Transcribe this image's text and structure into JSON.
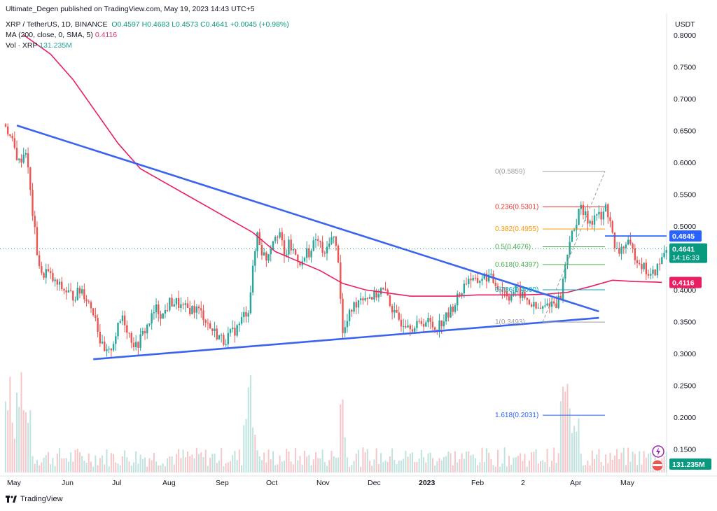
{
  "header": {
    "published": "Ultimate_Degen published on TradingView.com, May 19, 2023 14:43 UTC+5",
    "symbol": "XRP / TetherUS, 1D, BINANCE",
    "ohlc_o": "O0.4597",
    "ohlc_h": "H0.4683",
    "ohlc_l": "L0.4573",
    "ohlc_c": "C0.4641",
    "change": "+0.0045 (+0.98%)",
    "ma_label": "MA (200, close, 0, SMA, 5)",
    "ma_value": "0.4116",
    "vol_label": "Vol · XRP",
    "vol_value": "131.235M"
  },
  "footer": {
    "brand": "TradingView"
  },
  "chart_data": {
    "type": "candlestick",
    "currency": "USDT",
    "y_ticks": [
      "0.8000",
      "0.7500",
      "0.7000",
      "0.6500",
      "0.6000",
      "0.5500",
      "0.5000",
      "0.4500",
      "0.4000",
      "0.3500",
      "0.3000",
      "0.2500",
      "0.2000",
      "0.1500"
    ],
    "ylim": [
      0.13,
      0.82
    ],
    "x_ticks": [
      "May",
      "Jun",
      "Jul",
      "Aug",
      "Sep",
      "Oct",
      "Nov",
      "Dec",
      "2023",
      "Feb",
      "2",
      "Apr",
      "May"
    ],
    "price_path": [
      [
        0,
        0.66
      ],
      [
        3,
        0.63
      ],
      [
        6,
        0.6
      ],
      [
        9,
        0.62
      ],
      [
        12,
        0.52
      ],
      [
        14,
        0.46
      ],
      [
        16,
        0.42
      ],
      [
        18,
        0.43
      ],
      [
        22,
        0.41
      ],
      [
        26,
        0.4
      ],
      [
        30,
        0.39
      ],
      [
        34,
        0.4
      ],
      [
        37,
        0.38
      ],
      [
        40,
        0.36
      ],
      [
        42,
        0.32
      ],
      [
        44,
        0.3
      ],
      [
        46,
        0.3
      ],
      [
        49,
        0.33
      ],
      [
        52,
        0.36
      ],
      [
        55,
        0.33
      ],
      [
        58,
        0.31
      ],
      [
        61,
        0.33
      ],
      [
        64,
        0.35
      ],
      [
        67,
        0.37
      ],
      [
        70,
        0.36
      ],
      [
        73,
        0.38
      ],
      [
        76,
        0.38
      ],
      [
        79,
        0.37
      ],
      [
        82,
        0.37
      ],
      [
        85,
        0.37
      ],
      [
        88,
        0.36
      ],
      [
        91,
        0.34
      ],
      [
        94,
        0.33
      ],
      [
        97,
        0.32
      ],
      [
        100,
        0.33
      ],
      [
        103,
        0.34
      ],
      [
        106,
        0.36
      ],
      [
        108,
        0.37
      ],
      [
        110,
        0.43
      ],
      [
        112,
        0.49
      ],
      [
        114,
        0.46
      ],
      [
        116,
        0.45
      ],
      [
        118,
        0.47
      ],
      [
        120,
        0.49
      ],
      [
        122,
        0.49
      ],
      [
        124,
        0.45
      ],
      [
        126,
        0.47
      ],
      [
        128,
        0.46
      ],
      [
        130,
        0.45
      ],
      [
        132,
        0.44
      ],
      [
        134,
        0.46
      ],
      [
        136,
        0.46
      ],
      [
        138,
        0.48
      ],
      [
        140,
        0.47
      ],
      [
        142,
        0.45
      ],
      [
        144,
        0.48
      ],
      [
        146,
        0.48
      ],
      [
        148,
        0.45
      ],
      [
        150,
        0.33
      ],
      [
        152,
        0.35
      ],
      [
        154,
        0.37
      ],
      [
        156,
        0.38
      ],
      [
        158,
        0.39
      ],
      [
        161,
        0.39
      ],
      [
        164,
        0.39
      ],
      [
        167,
        0.4
      ],
      [
        170,
        0.39
      ],
      [
        173,
        0.36
      ],
      [
        176,
        0.35
      ],
      [
        179,
        0.35
      ],
      [
        182,
        0.34
      ],
      [
        185,
        0.35
      ],
      [
        188,
        0.35
      ],
      [
        191,
        0.34
      ],
      [
        194,
        0.35
      ],
      [
        197,
        0.36
      ],
      [
        200,
        0.38
      ],
      [
        203,
        0.4
      ],
      [
        206,
        0.42
      ],
      [
        209,
        0.41
      ],
      [
        212,
        0.42
      ],
      [
        215,
        0.42
      ],
      [
        218,
        0.41
      ],
      [
        221,
        0.4
      ],
      [
        224,
        0.39
      ],
      [
        227,
        0.4
      ],
      [
        230,
        0.39
      ],
      [
        233,
        0.38
      ],
      [
        236,
        0.37
      ],
      [
        239,
        0.37
      ],
      [
        242,
        0.38
      ],
      [
        245,
        0.38
      ],
      [
        247,
        0.39
      ],
      [
        249,
        0.44
      ],
      [
        251,
        0.48
      ],
      [
        253,
        0.49
      ],
      [
        255,
        0.53
      ],
      [
        257,
        0.52
      ],
      [
        259,
        0.51
      ],
      [
        261,
        0.51
      ],
      [
        263,
        0.52
      ],
      [
        265,
        0.51
      ],
      [
        267,
        0.53
      ],
      [
        269,
        0.51
      ],
      [
        271,
        0.46
      ],
      [
        273,
        0.46
      ],
      [
        275,
        0.47
      ],
      [
        277,
        0.47
      ],
      [
        279,
        0.46
      ],
      [
        281,
        0.45
      ],
      [
        283,
        0.44
      ],
      [
        285,
        0.43
      ],
      [
        287,
        0.42
      ],
      [
        289,
        0.43
      ],
      [
        291,
        0.44
      ],
      [
        293,
        0.46
      ],
      [
        294,
        0.4641
      ]
    ],
    "ma200_path": [
      [
        8,
        0.8
      ],
      [
        20,
        0.77
      ],
      [
        30,
        0.73
      ],
      [
        40,
        0.68
      ],
      [
        50,
        0.63
      ],
      [
        60,
        0.59
      ],
      [
        70,
        0.57
      ],
      [
        80,
        0.55
      ],
      [
        90,
        0.53
      ],
      [
        100,
        0.51
      ],
      [
        110,
        0.49
      ],
      [
        120,
        0.46
      ],
      [
        130,
        0.445
      ],
      [
        140,
        0.43
      ],
      [
        150,
        0.41
      ],
      [
        160,
        0.4
      ],
      [
        170,
        0.395
      ],
      [
        180,
        0.39
      ],
      [
        190,
        0.39
      ],
      [
        200,
        0.39
      ],
      [
        210,
        0.392
      ],
      [
        220,
        0.392
      ],
      [
        230,
        0.392
      ],
      [
        240,
        0.393
      ],
      [
        250,
        0.396
      ],
      [
        260,
        0.405
      ],
      [
        270,
        0.415
      ],
      [
        280,
        0.413
      ],
      [
        290,
        0.412
      ],
      [
        292,
        0.4116
      ]
    ],
    "trendlines": [
      {
        "from": [
          5,
          0.658
        ],
        "to": [
          264,
          0.366
        ],
        "color": "#3a64f0"
      },
      {
        "from": [
          39,
          0.291
        ],
        "to": [
          264,
          0.356
        ],
        "color": "#3a64f0"
      }
    ],
    "fibonacci": [
      {
        "label": "0(0.5859)",
        "value": 0.5859,
        "color": "#9e9e9e"
      },
      {
        "label": "0.236(0.5301)",
        "value": 0.5301,
        "color": "#e53935"
      },
      {
        "label": "0.382(0.4955)",
        "value": 0.4955,
        "color": "#ff9800"
      },
      {
        "label": "0.5(0.4676)",
        "value": 0.4676,
        "color": "#4caf50"
      },
      {
        "label": "0.618(0.4397)",
        "value": 0.4397,
        "color": "#4caf50"
      },
      {
        "label": "0.786(0.4000)",
        "value": 0.4,
        "color": "#00acc1"
      },
      {
        "label": "1(0.3493)",
        "value": 0.3493,
        "color": "#9e9e9e"
      },
      {
        "label": "1.618(0.2031)",
        "value": 0.2031,
        "color": "#2962ff"
      }
    ],
    "resistance": {
      "value": 0.4845,
      "label": "0.4845",
      "color": "#2962ff"
    },
    "last_price": {
      "value": 0.4641,
      "label": "0.4641",
      "countdown": "14:16:33",
      "color": "#089981"
    },
    "ma_tag": {
      "value": 0.4116,
      "label": "0.4116",
      "color": "#e91e63"
    },
    "volume_tag": {
      "label": "131.235M",
      "color": "#089981"
    }
  }
}
